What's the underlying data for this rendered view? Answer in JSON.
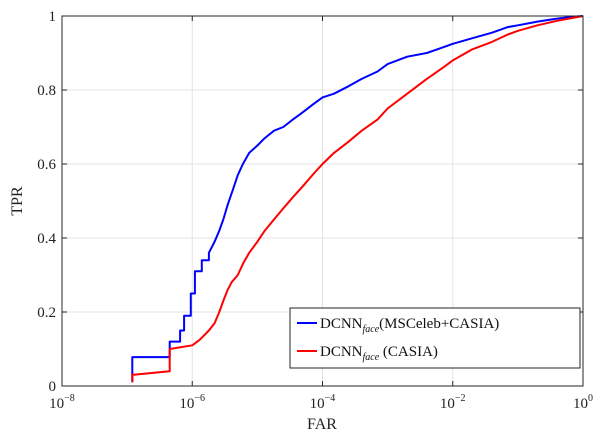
{
  "chart_data": {
    "type": "line",
    "xlabel": "FAR",
    "ylabel": "TPR",
    "xscale": "log",
    "xlim": [
      1e-08,
      1
    ],
    "ylim": [
      0,
      1
    ],
    "grid": true,
    "legend_position": "bottom-right",
    "x_ticks": [
      {
        "value": 1e-08,
        "base": "10",
        "exp": "−8"
      },
      {
        "value": 1e-06,
        "base": "10",
        "exp": "−6"
      },
      {
        "value": 0.0001,
        "base": "10",
        "exp": "−4"
      },
      {
        "value": 0.01,
        "base": "10",
        "exp": "−2"
      },
      {
        "value": 1,
        "base": "10",
        "exp": "0"
      }
    ],
    "y_ticks": [
      {
        "value": 0,
        "label": "0"
      },
      {
        "value": 0.2,
        "label": "0.2"
      },
      {
        "value": 0.4,
        "label": "0.4"
      },
      {
        "value": 0.6,
        "label": "0.6"
      },
      {
        "value": 0.8,
        "label": "0.8"
      },
      {
        "value": 1,
        "label": "1"
      }
    ],
    "series": [
      {
        "name_main": "DCNN",
        "name_sub": "face",
        "name_rest": "(MSCeleb+CASIA)",
        "color": "#0000ff",
        "x": [
          1.2e-07,
          1.2e-07,
          4.5e-07,
          4.5e-07,
          6.5e-07,
          6.5e-07,
          7.5e-07,
          7.5e-07,
          9.5e-07,
          9.5e-07,
          1.1e-06,
          1.1e-06,
          1.4e-06,
          1.4e-06,
          1.8e-06,
          1.8e-06,
          2.2e-06,
          2.6e-06,
          3e-06,
          3.5e-06,
          4.2e-06,
          5e-06,
          6e-06,
          7.5e-06,
          1e-05,
          1.3e-05,
          1.8e-05,
          2.5e-05,
          3.5e-05,
          5e-05,
          7e-05,
          0.0001,
          0.00015,
          0.00025,
          0.0004,
          0.0007,
          0.001,
          0.002,
          0.004,
          0.007,
          0.01,
          0.02,
          0.04,
          0.07,
          0.1,
          0.2,
          0.4,
          0.7,
          1.0
        ],
        "y": [
          0.01,
          0.078,
          0.078,
          0.12,
          0.12,
          0.15,
          0.15,
          0.19,
          0.19,
          0.25,
          0.25,
          0.31,
          0.31,
          0.34,
          0.34,
          0.36,
          0.39,
          0.42,
          0.45,
          0.49,
          0.53,
          0.57,
          0.6,
          0.63,
          0.65,
          0.67,
          0.69,
          0.7,
          0.72,
          0.74,
          0.76,
          0.78,
          0.79,
          0.81,
          0.83,
          0.85,
          0.87,
          0.89,
          0.9,
          0.915,
          0.925,
          0.94,
          0.955,
          0.97,
          0.975,
          0.985,
          0.993,
          0.998,
          1.0
        ]
      },
      {
        "name_main": "DCNN",
        "name_sub": "face",
        "name_rest": " (CASIA)",
        "color": "#ff0000",
        "x": [
          1.2e-07,
          1.2e-07,
          4.5e-07,
          4.5e-07,
          1e-06,
          1.3e-06,
          1.8e-06,
          2.2e-06,
          2.6e-06,
          3e-06,
          3.5e-06,
          4e-06,
          5e-06,
          6e-06,
          7.5e-06,
          1e-05,
          1.3e-05,
          1.8e-05,
          2.5e-05,
          3.5e-05,
          5e-05,
          7e-05,
          0.0001,
          0.00015,
          0.00025,
          0.0004,
          0.0007,
          0.001,
          0.002,
          0.004,
          0.007,
          0.01,
          0.02,
          0.04,
          0.07,
          0.1,
          0.2,
          0.4,
          0.7,
          1.0
        ],
        "y": [
          0.01,
          0.03,
          0.04,
          0.1,
          0.11,
          0.125,
          0.15,
          0.17,
          0.2,
          0.23,
          0.26,
          0.28,
          0.3,
          0.33,
          0.36,
          0.39,
          0.42,
          0.45,
          0.48,
          0.51,
          0.54,
          0.57,
          0.6,
          0.63,
          0.66,
          0.69,
          0.72,
          0.75,
          0.79,
          0.83,
          0.86,
          0.88,
          0.91,
          0.93,
          0.95,
          0.96,
          0.975,
          0.987,
          0.995,
          1.0
        ]
      }
    ]
  }
}
